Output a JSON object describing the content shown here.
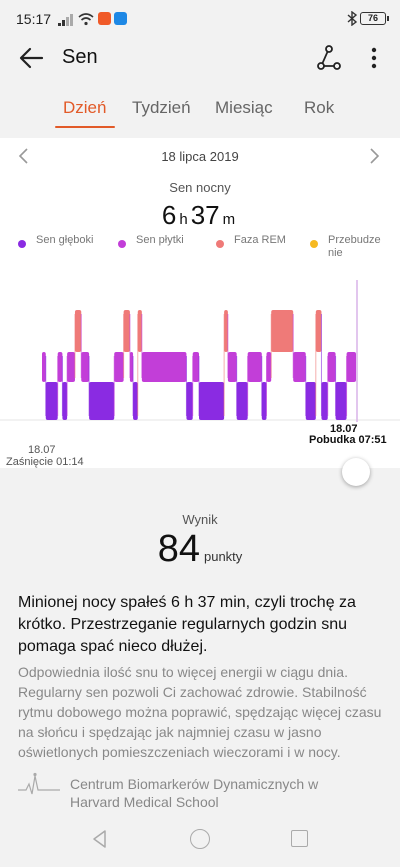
{
  "status_bar": {
    "time": "15:17",
    "battery": "76",
    "icons": [
      "signal-icon",
      "wifi-icon",
      "app-notification-icon",
      "app-notification-icon",
      "bluetooth-icon",
      "battery-icon"
    ]
  },
  "header": {
    "title": "Sen",
    "back_icon": "arrow-left-icon",
    "share_icon": "share-icon",
    "more_icon": "more-vertical-icon"
  },
  "tabs": [
    {
      "label": "Dzień",
      "active": true
    },
    {
      "label": "Tydzień",
      "active": false
    },
    {
      "label": "Miesiąc",
      "active": false
    },
    {
      "label": "Rok",
      "active": false
    }
  ],
  "day": {
    "date": "18 lipca 2019",
    "summary_label": "Sen nocny",
    "hours": "6",
    "hours_unit": "h",
    "minutes": "37",
    "minutes_unit": "m"
  },
  "legend": [
    {
      "label": "Sen głęboki",
      "color": "#8a2be2"
    },
    {
      "label": "Sen płytki",
      "color": "#c23ed8"
    },
    {
      "label": "Faza REM",
      "color": "#ef7a78"
    },
    {
      "label": "Przebudzenie",
      "color": "#f6b921"
    }
  ],
  "chart_data": {
    "type": "bar",
    "stages": [
      "Faza REM",
      "Sen płytki",
      "Sen głęboki"
    ],
    "x_start": "01:14",
    "x_end": "07:51",
    "segments": [
      {
        "stage": "Sen płytki",
        "from": 0.0,
        "to": 0.012
      },
      {
        "stage": "Sen głęboki",
        "from": 0.012,
        "to": 0.05
      },
      {
        "stage": "Sen płytki",
        "from": 0.05,
        "to": 0.065
      },
      {
        "stage": "Sen głęboki",
        "from": 0.065,
        "to": 0.08
      },
      {
        "stage": "Sen płytki",
        "from": 0.08,
        "to": 0.105
      },
      {
        "stage": "Faza REM",
        "from": 0.105,
        "to": 0.125
      },
      {
        "stage": "Sen płytki",
        "from": 0.125,
        "to": 0.15
      },
      {
        "stage": "Sen głęboki",
        "from": 0.15,
        "to": 0.23
      },
      {
        "stage": "Sen płytki",
        "from": 0.23,
        "to": 0.26
      },
      {
        "stage": "Faza REM",
        "from": 0.26,
        "to": 0.28
      },
      {
        "stage": "Sen płytki",
        "from": 0.28,
        "to": 0.29
      },
      {
        "stage": "Sen głęboki",
        "from": 0.29,
        "to": 0.305
      },
      {
        "stage": "Faza REM",
        "from": 0.305,
        "to": 0.318
      },
      {
        "stage": "Sen płytki",
        "from": 0.318,
        "to": 0.46
      },
      {
        "stage": "Sen głęboki",
        "from": 0.46,
        "to": 0.48
      },
      {
        "stage": "Sen płytki",
        "from": 0.48,
        "to": 0.5
      },
      {
        "stage": "Sen głęboki",
        "from": 0.5,
        "to": 0.58
      },
      {
        "stage": "Faza REM",
        "from": 0.58,
        "to": 0.592
      },
      {
        "stage": "Sen płytki",
        "from": 0.592,
        "to": 0.62
      },
      {
        "stage": "Sen głęboki",
        "from": 0.62,
        "to": 0.655
      },
      {
        "stage": "Sen płytki",
        "from": 0.655,
        "to": 0.7
      },
      {
        "stage": "Sen głęboki",
        "from": 0.7,
        "to": 0.715
      },
      {
        "stage": "Sen płytki",
        "from": 0.715,
        "to": 0.73
      },
      {
        "stage": "Faza REM",
        "from": 0.73,
        "to": 0.8
      },
      {
        "stage": "Sen płytki",
        "from": 0.8,
        "to": 0.84
      },
      {
        "stage": "Sen głęboki",
        "from": 0.84,
        "to": 0.872
      },
      {
        "stage": "Faza REM",
        "from": 0.872,
        "to": 0.89
      },
      {
        "stage": "Sen głęboki",
        "from": 0.89,
        "to": 0.91
      },
      {
        "stage": "Sen płytki",
        "from": 0.91,
        "to": 0.935
      },
      {
        "stage": "Sen głęboki",
        "from": 0.935,
        "to": 0.97
      },
      {
        "stage": "Sen płytki",
        "from": 0.97,
        "to": 1.0
      }
    ]
  },
  "chart_labels": {
    "start_date": "18.07",
    "start_time": "Zaśnięcie 01:14",
    "end_date": "18.07",
    "end_time": "Pobudka 07:51"
  },
  "score": {
    "label": "Wynik",
    "value": "84",
    "unit": "punkty"
  },
  "headline": "Minionej nocy spałeś 6 h 37 min, czyli trochę za krótko. Przestrzeganie regularnych godzin snu pomaga spać nieco dłużej.",
  "body": "Odpowiednia ilość snu to więcej energii w ciągu dnia. Regularny sen pozwoli Ci zachować zdrowie. Stabilność rytmu dobowego można poprawić, spędzając więcej czasu na słońcu i spędzając jak najmniej czasu w jasno oświetlonych pomieszczeniach wieczorami i w nocy.",
  "source": {
    "icon": "harvard-logo-icon",
    "text": "Centrum Biomarkerów Dynamicznych w Harvard Medical School"
  },
  "navbar": {
    "icons": [
      "nav-back-icon",
      "nav-home-icon",
      "nav-recent-icon"
    ]
  }
}
